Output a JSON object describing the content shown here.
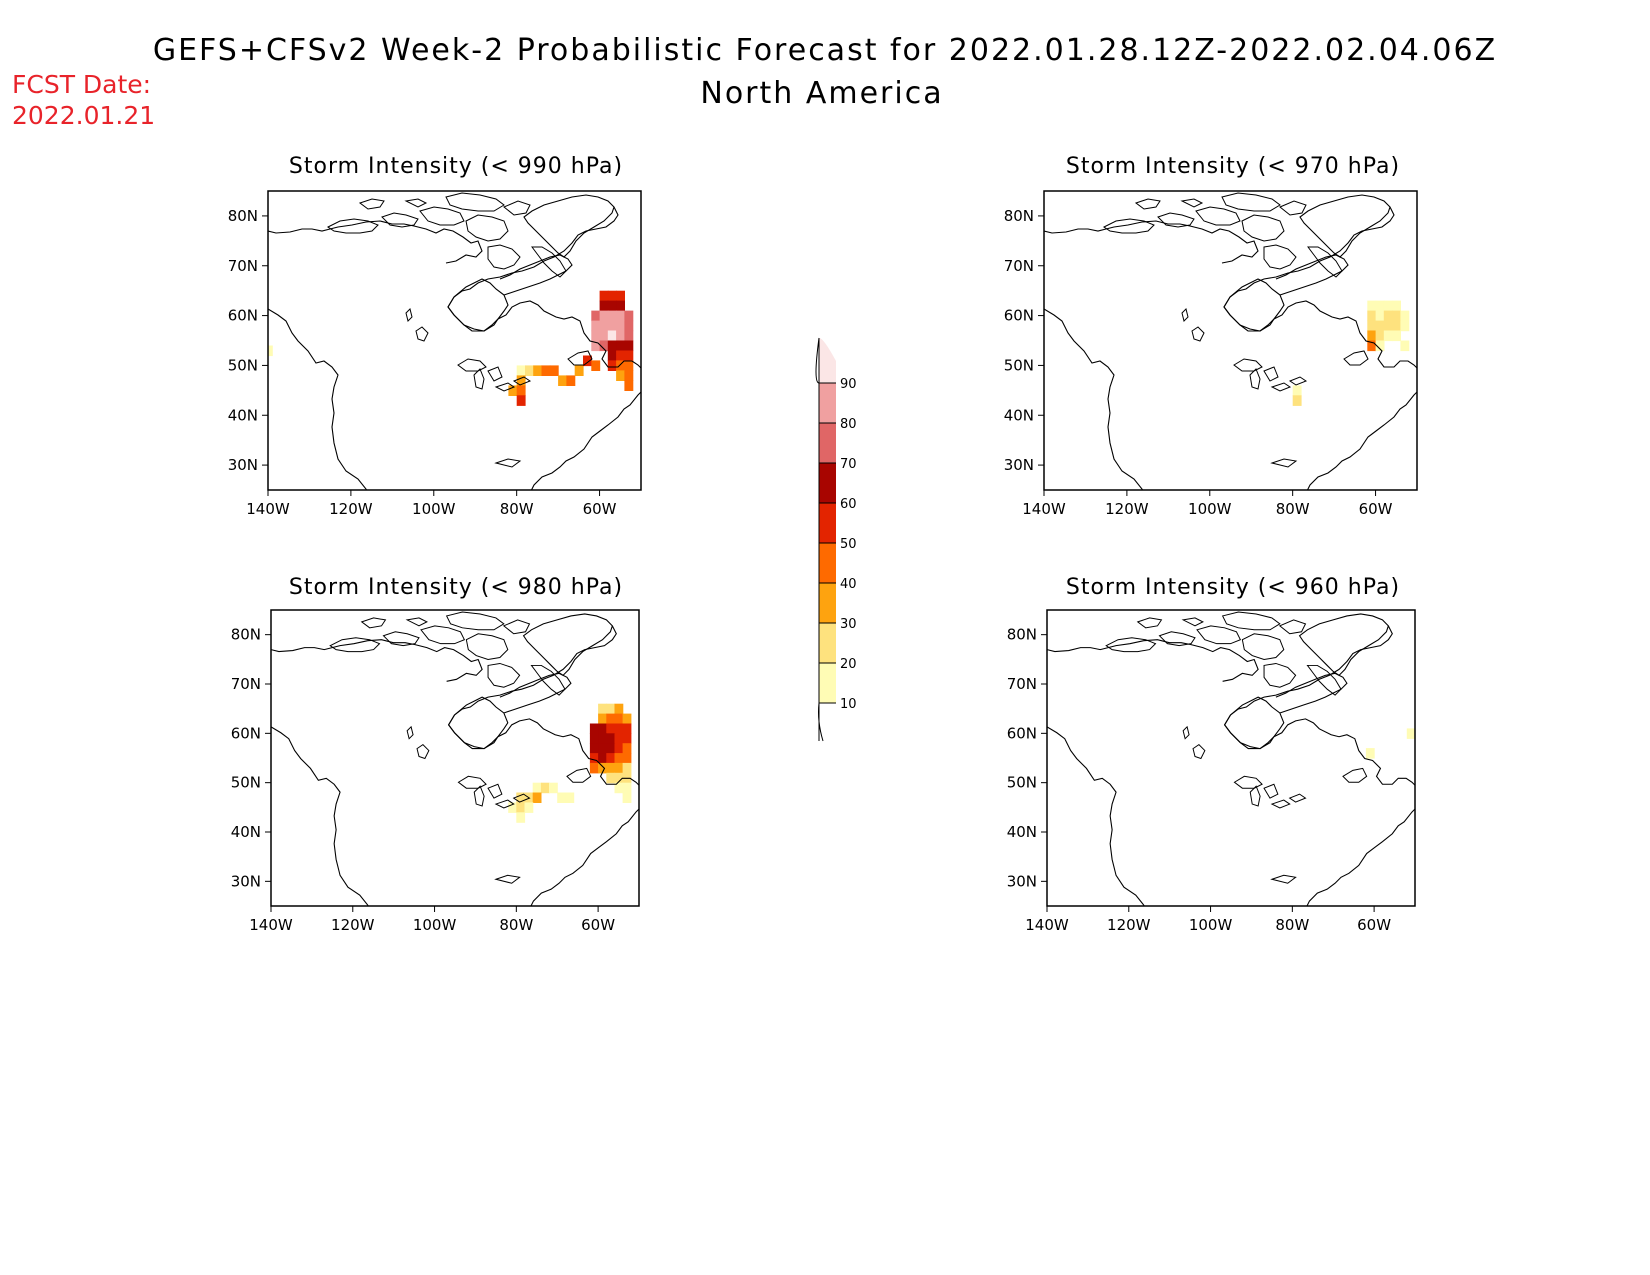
{
  "header": {
    "title": "GEFS+CFSv2 Week-2 Probabilistic Forecast for 2022.01.28.12Z-2022.02.04.06Z",
    "subtitle": "North America",
    "fcst_label": "FCST Date:",
    "fcst_date": "2022.01.21"
  },
  "axes": {
    "lat_labels": [
      "80N",
      "70N",
      "60N",
      "50N",
      "40N",
      "30N"
    ],
    "lat_values": [
      80,
      70,
      60,
      50,
      40,
      30
    ],
    "lon_labels": [
      "140W",
      "120W",
      "100W",
      "80W",
      "60W"
    ],
    "lon_values": [
      -140,
      -120,
      -100,
      -80,
      -60
    ],
    "lat_range": [
      25,
      85
    ],
    "lon_range": [
      -140,
      -50
    ]
  },
  "colorbar": {
    "labels": [
      "10",
      "20",
      "30",
      "40",
      "50",
      "60",
      "70",
      "80",
      "90"
    ],
    "colors": [
      "#fffcb5",
      "#fee27e",
      "#fea30f",
      "#fe6a00",
      "#e32400",
      "#a80500",
      "#e06666",
      "#f0a0a0",
      "#fbe6e6"
    ]
  },
  "panels": [
    {
      "title": "Storm Intensity (< 990 hPa)",
      "cells": [
        {
          "lon": -140,
          "lat": 53,
          "level": 1
        },
        {
          "lon": -79,
          "lat": 49,
          "level": 1
        },
        {
          "lon": -77,
          "lat": 49,
          "level": 2
        },
        {
          "lon": -75,
          "lat": 49,
          "level": 3
        },
        {
          "lon": -73,
          "lat": 49,
          "level": 4
        },
        {
          "lon": -71,
          "lat": 49,
          "level": 4
        },
        {
          "lon": -79,
          "lat": 47,
          "level": 3
        },
        {
          "lon": -81,
          "lat": 45,
          "level": 3
        },
        {
          "lon": -79,
          "lat": 45,
          "level": 4
        },
        {
          "lon": -79,
          "lat": 43,
          "level": 5
        },
        {
          "lon": -69,
          "lat": 47,
          "level": 3
        },
        {
          "lon": -67,
          "lat": 47,
          "level": 4
        },
        {
          "lon": -65,
          "lat": 49,
          "level": 3
        },
        {
          "lon": -63,
          "lat": 51,
          "level": 5
        },
        {
          "lon": -59,
          "lat": 64,
          "level": 5
        },
        {
          "lon": -57,
          "lat": 64,
          "level": 5
        },
        {
          "lon": -55,
          "lat": 64,
          "level": 5
        },
        {
          "lon": -59,
          "lat": 62,
          "level": 6
        },
        {
          "lon": -57,
          "lat": 62,
          "level": 6
        },
        {
          "lon": -55,
          "lat": 62,
          "level": 6
        },
        {
          "lon": -61,
          "lat": 60,
          "level": 7
        },
        {
          "lon": -59,
          "lat": 60,
          "level": 8
        },
        {
          "lon": -57,
          "lat": 60,
          "level": 8
        },
        {
          "lon": -55,
          "lat": 60,
          "level": 8
        },
        {
          "lon": -53,
          "lat": 60,
          "level": 7
        },
        {
          "lon": -61,
          "lat": 58,
          "level": 8
        },
        {
          "lon": -59,
          "lat": 58,
          "level": 8
        },
        {
          "lon": -57,
          "lat": 58,
          "level": 8
        },
        {
          "lon": -55,
          "lat": 58,
          "level": 8
        },
        {
          "lon": -53,
          "lat": 58,
          "level": 7
        },
        {
          "lon": -61,
          "lat": 56,
          "level": 8
        },
        {
          "lon": -59,
          "lat": 56,
          "level": 8
        },
        {
          "lon": -57,
          "lat": 56,
          "level": 9
        },
        {
          "lon": -55,
          "lat": 56,
          "level": 8
        },
        {
          "lon": -53,
          "lat": 56,
          "level": 7
        },
        {
          "lon": -61,
          "lat": 54,
          "level": 8
        },
        {
          "lon": -59,
          "lat": 54,
          "level": 7
        },
        {
          "lon": -57,
          "lat": 54,
          "level": 6
        },
        {
          "lon": -55,
          "lat": 54,
          "level": 6
        },
        {
          "lon": -53,
          "lat": 54,
          "level": 6
        },
        {
          "lon": -57,
          "lat": 52,
          "level": 6
        },
        {
          "lon": -55,
          "lat": 52,
          "level": 5
        },
        {
          "lon": -53,
          "lat": 52,
          "level": 5
        },
        {
          "lon": -61,
          "lat": 50,
          "level": 4
        },
        {
          "lon": -57,
          "lat": 50,
          "level": 5
        },
        {
          "lon": -55,
          "lat": 50,
          "level": 4
        },
        {
          "lon": -53,
          "lat": 50,
          "level": 4
        },
        {
          "lon": -55,
          "lat": 48,
          "level": 3
        },
        {
          "lon": -53,
          "lat": 48,
          "level": 4
        },
        {
          "lon": -53,
          "lat": 46,
          "level": 4
        }
      ]
    },
    {
      "title": "Storm Intensity (< 970 hPa)",
      "cells": [
        {
          "lon": -61,
          "lat": 62,
          "level": 1
        },
        {
          "lon": -59,
          "lat": 62,
          "level": 1
        },
        {
          "lon": -57,
          "lat": 62,
          "level": 1
        },
        {
          "lon": -55,
          "lat": 62,
          "level": 1
        },
        {
          "lon": -61,
          "lat": 60,
          "level": 2
        },
        {
          "lon": -59,
          "lat": 60,
          "level": 1
        },
        {
          "lon": -57,
          "lat": 60,
          "level": 2
        },
        {
          "lon": -55,
          "lat": 60,
          "level": 2
        },
        {
          "lon": -53,
          "lat": 60,
          "level": 1
        },
        {
          "lon": -61,
          "lat": 58,
          "level": 2
        },
        {
          "lon": -59,
          "lat": 58,
          "level": 2
        },
        {
          "lon": -57,
          "lat": 58,
          "level": 2
        },
        {
          "lon": -55,
          "lat": 58,
          "level": 2
        },
        {
          "lon": -53,
          "lat": 58,
          "level": 1
        },
        {
          "lon": -61,
          "lat": 56,
          "level": 3
        },
        {
          "lon": -59,
          "lat": 56,
          "level": 2
        },
        {
          "lon": -57,
          "lat": 56,
          "level": 1
        },
        {
          "lon": -55,
          "lat": 56,
          "level": 1
        },
        {
          "lon": -61,
          "lat": 54,
          "level": 4
        },
        {
          "lon": -59,
          "lat": 54,
          "level": 1
        },
        {
          "lon": -53,
          "lat": 54,
          "level": 1
        },
        {
          "lon": -79,
          "lat": 45,
          "level": 1
        },
        {
          "lon": -79,
          "lat": 43,
          "level": 2
        }
      ]
    },
    {
      "title": "Storm Intensity (< 980 hPa)",
      "cells": [
        {
          "lon": -59,
          "lat": 65,
          "level": 2
        },
        {
          "lon": -57,
          "lat": 65,
          "level": 2
        },
        {
          "lon": -55,
          "lat": 65,
          "level": 3
        },
        {
          "lon": -59,
          "lat": 63,
          "level": 3
        },
        {
          "lon": -57,
          "lat": 63,
          "level": 4
        },
        {
          "lon": -55,
          "lat": 63,
          "level": 4
        },
        {
          "lon": -53,
          "lat": 63,
          "level": 3
        },
        {
          "lon": -61,
          "lat": 61,
          "level": 6
        },
        {
          "lon": -59,
          "lat": 61,
          "level": 6
        },
        {
          "lon": -57,
          "lat": 61,
          "level": 5
        },
        {
          "lon": -55,
          "lat": 61,
          "level": 5
        },
        {
          "lon": -53,
          "lat": 61,
          "level": 5
        },
        {
          "lon": -61,
          "lat": 59,
          "level": 6
        },
        {
          "lon": -59,
          "lat": 59,
          "level": 6
        },
        {
          "lon": -57,
          "lat": 59,
          "level": 6
        },
        {
          "lon": -55,
          "lat": 59,
          "level": 5
        },
        {
          "lon": -53,
          "lat": 59,
          "level": 5
        },
        {
          "lon": -61,
          "lat": 57,
          "level": 6
        },
        {
          "lon": -59,
          "lat": 57,
          "level": 6
        },
        {
          "lon": -57,
          "lat": 57,
          "level": 6
        },
        {
          "lon": -55,
          "lat": 57,
          "level": 5
        },
        {
          "lon": -53,
          "lat": 57,
          "level": 4
        },
        {
          "lon": -61,
          "lat": 55,
          "level": 5
        },
        {
          "lon": -59,
          "lat": 55,
          "level": 6
        },
        {
          "lon": -57,
          "lat": 55,
          "level": 5
        },
        {
          "lon": -55,
          "lat": 55,
          "level": 4
        },
        {
          "lon": -53,
          "lat": 55,
          "level": 4
        },
        {
          "lon": -61,
          "lat": 53,
          "level": 4
        },
        {
          "lon": -59,
          "lat": 53,
          "level": 3
        },
        {
          "lon": -57,
          "lat": 53,
          "level": 3
        },
        {
          "lon": -55,
          "lat": 53,
          "level": 3
        },
        {
          "lon": -53,
          "lat": 53,
          "level": 2
        },
        {
          "lon": -57,
          "lat": 51,
          "level": 2
        },
        {
          "lon": -55,
          "lat": 51,
          "level": 2
        },
        {
          "lon": -53,
          "lat": 51,
          "level": 2
        },
        {
          "lon": -55,
          "lat": 49,
          "level": 1
        },
        {
          "lon": -53,
          "lat": 49,
          "level": 1
        },
        {
          "lon": -53,
          "lat": 47,
          "level": 1
        },
        {
          "lon": -75,
          "lat": 49,
          "level": 1
        },
        {
          "lon": -73,
          "lat": 49,
          "level": 2
        },
        {
          "lon": -71,
          "lat": 49,
          "level": 1
        },
        {
          "lon": -79,
          "lat": 47,
          "level": 2
        },
        {
          "lon": -77,
          "lat": 47,
          "level": 2
        },
        {
          "lon": -75,
          "lat": 47,
          "level": 3
        },
        {
          "lon": -81,
          "lat": 45,
          "level": 1
        },
        {
          "lon": -79,
          "lat": 45,
          "level": 2
        },
        {
          "lon": -77,
          "lat": 45,
          "level": 1
        },
        {
          "lon": -79,
          "lat": 43,
          "level": 1
        },
        {
          "lon": -69,
          "lat": 47,
          "level": 1
        },
        {
          "lon": -67,
          "lat": 47,
          "level": 1
        }
      ]
    },
    {
      "title": "Storm Intensity (< 960 hPa)",
      "cells": [
        {
          "lon": -61,
          "lat": 56,
          "level": 1
        },
        {
          "lon": -51,
          "lat": 60,
          "level": 1
        }
      ]
    }
  ]
}
